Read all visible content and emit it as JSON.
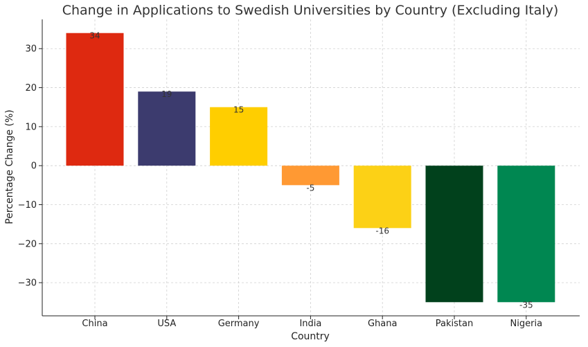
{
  "chart_data": {
    "type": "bar",
    "title": "Change in Applications to Swedish Universities by Country (Excluding Italy)",
    "xlabel": "Country",
    "ylabel": "Percentage Change (%)",
    "categories": [
      "China",
      "USA",
      "Germany",
      "India",
      "Ghana",
      "Pakistan",
      "Nigeria"
    ],
    "values": [
      34,
      19,
      15,
      -5,
      -16,
      -35,
      -35
    ],
    "data_labels": [
      "34",
      "19",
      "15",
      "-5",
      "-16",
      "",
      "-35"
    ],
    "colors": [
      "#DE2910",
      "#3C3B6E",
      "#FFCE00",
      "#FF9933",
      "#FCD116",
      "#01411C",
      "#008751"
    ],
    "ylim": [
      -38.5,
      37.5
    ],
    "yticks": [
      30,
      20,
      10,
      0,
      -10,
      -20,
      -30
    ],
    "ytick_labels": [
      "30",
      "20",
      "10",
      "0",
      "−10",
      "−20",
      "−30"
    ],
    "grid": true
  }
}
